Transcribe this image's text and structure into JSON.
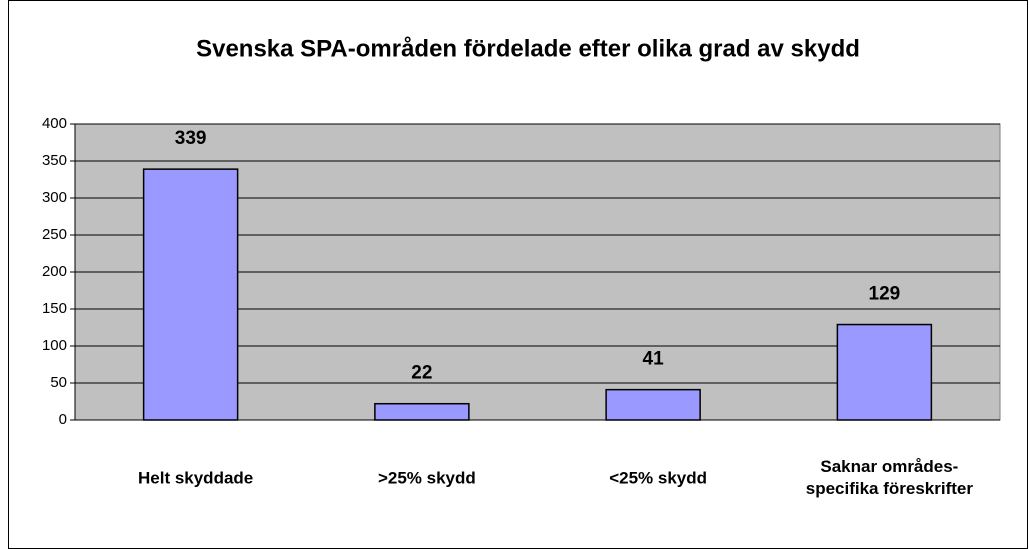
{
  "chart_data": {
    "type": "bar",
    "title": "Svenska SPA-områden fördelade efter olika grad av skydd",
    "categories": [
      "Helt skyddade",
      ">25% skydd",
      "<25% skydd",
      "Saknar områdes-\nspecifika föreskrifter"
    ],
    "values": [
      339,
      22,
      41,
      129
    ],
    "color": "#9999ff",
    "ylim": [
      0,
      400
    ],
    "yticks": [
      0,
      50,
      100,
      150,
      200,
      250,
      300,
      350,
      400
    ],
    "grid": true
  }
}
